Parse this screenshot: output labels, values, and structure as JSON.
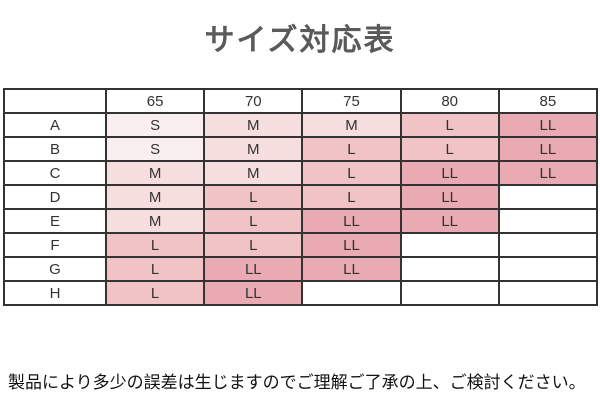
{
  "page": {
    "title": "サイズ対応表",
    "footer_note": "製品により多少の誤差は生じますのでご理解ご了承の上、ご検討ください。"
  },
  "chart_data": {
    "type": "table",
    "title": "サイズ対応表",
    "corner_label": "",
    "columns": [
      "65",
      "70",
      "75",
      "80",
      "85"
    ],
    "row_labels": [
      "A",
      "B",
      "C",
      "D",
      "E",
      "F",
      "G",
      "H"
    ],
    "rows": [
      [
        "S",
        "M",
        "M",
        "L",
        "LL"
      ],
      [
        "S",
        "M",
        "L",
        "L",
        "LL"
      ],
      [
        "M",
        "M",
        "L",
        "LL",
        "LL"
      ],
      [
        "M",
        "L",
        "L",
        "LL",
        ""
      ],
      [
        "M",
        "L",
        "LL",
        "LL",
        ""
      ],
      [
        "L",
        "L",
        "LL",
        "",
        ""
      ],
      [
        "L",
        "LL",
        "LL",
        "",
        ""
      ],
      [
        "L",
        "LL",
        "",
        "",
        ""
      ]
    ],
    "legend_note": "cell shading encodes garment size: S lightest pink through LL darkest pink; empty cells white",
    "cell_colors": {
      "S": "#f9efee",
      "M": "#f6dede",
      "L": "#f1c3c7",
      "LL": "#e9aab4",
      "": "#ffffff"
    }
  },
  "colors": {
    "background": "#ffffff",
    "border": "#333333",
    "title_text": "#595a5c",
    "cell_text": "#333333",
    "footer_text": "#111111"
  }
}
